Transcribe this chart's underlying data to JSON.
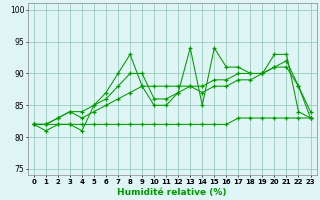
{
  "x": [
    0,
    1,
    2,
    3,
    4,
    5,
    6,
    7,
    8,
    9,
    10,
    11,
    12,
    13,
    14,
    15,
    16,
    17,
    18,
    19,
    20,
    21,
    22,
    23
  ],
  "line1": [
    82,
    81,
    82,
    82,
    81,
    85,
    87,
    90,
    93,
    88,
    85,
    85,
    87,
    94,
    85,
    94,
    91,
    91,
    90,
    90,
    93,
    93,
    84,
    83
  ],
  "line2": [
    82,
    82,
    83,
    84,
    84,
    85,
    86,
    88,
    90,
    90,
    86,
    86,
    87,
    88,
    87,
    88,
    88,
    89,
    89,
    90,
    91,
    92,
    88,
    83
  ],
  "line3": [
    82,
    82,
    82,
    82,
    82,
    82,
    82,
    82,
    82,
    82,
    82,
    82,
    82,
    82,
    82,
    82,
    82,
    83,
    83,
    83,
    83,
    83,
    83,
    83
  ],
  "line4": [
    82,
    82,
    83,
    84,
    83,
    84,
    85,
    86,
    87,
    88,
    88,
    88,
    88,
    88,
    88,
    89,
    89,
    90,
    90,
    90,
    91,
    91,
    88,
    84
  ],
  "bg_color": "#dff4f4",
  "grid_color": "#99ccbb",
  "line_color": "#009900",
  "xlabel": "Humidité relative (%)",
  "ylim": [
    74,
    101
  ],
  "xlim": [
    -0.5,
    23.5
  ],
  "yticks": [
    75,
    80,
    85,
    90,
    95,
    100
  ],
  "xticks": [
    0,
    1,
    2,
    3,
    4,
    5,
    6,
    7,
    8,
    9,
    10,
    11,
    12,
    13,
    14,
    15,
    16,
    17,
    18,
    19,
    20,
    21,
    22,
    23
  ]
}
